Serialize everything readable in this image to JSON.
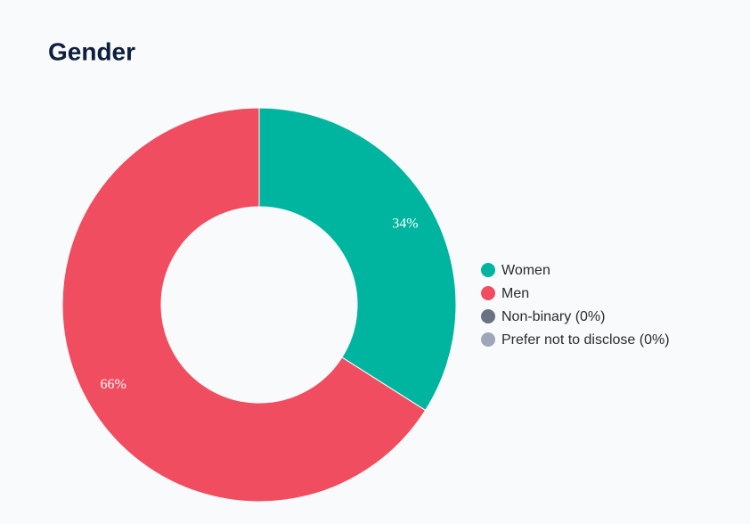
{
  "chart_data": {
    "type": "donut",
    "title": "Gender",
    "categories": [
      "Women",
      "Men",
      "Non-binary (0%)",
      "Prefer not to disclose (0%)"
    ],
    "values": [
      34,
      66,
      0,
      0
    ],
    "value_labels": [
      "34%",
      "66%",
      null,
      null
    ],
    "colors": [
      "#00b5a0",
      "#f04e60",
      "#6b7282",
      "#9ea7ba"
    ],
    "legend": "right"
  }
}
